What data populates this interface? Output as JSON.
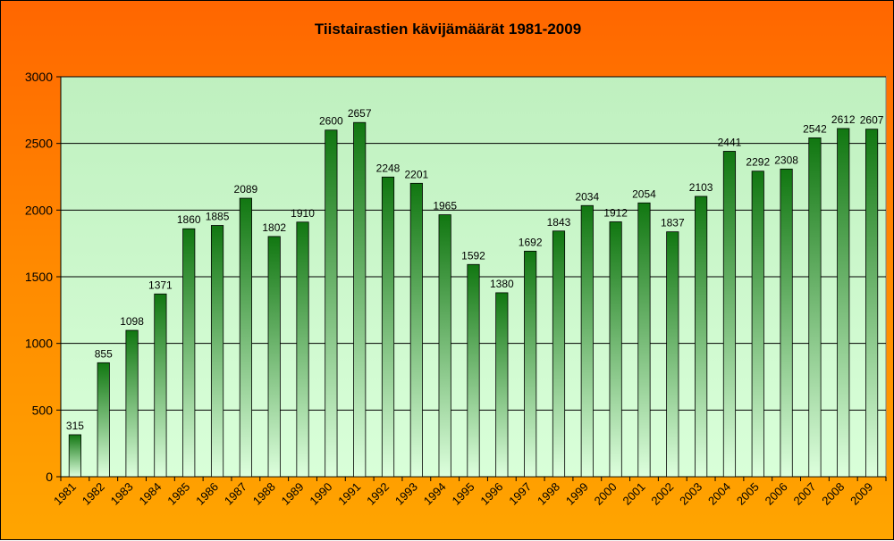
{
  "chart_data": {
    "type": "bar",
    "title": "Tiistairastien kävijämäärät 1981-2009",
    "xlabel": "",
    "ylabel": "",
    "ylim": [
      0,
      3000
    ],
    "yticks": [
      0,
      500,
      1000,
      1500,
      2000,
      2500,
      3000
    ],
    "grid": true,
    "legend": "none",
    "categories": [
      "1981",
      "1982",
      "1983",
      "1984",
      "1985",
      "1986",
      "1987",
      "1988",
      "1989",
      "1990",
      "1991",
      "1992",
      "1993",
      "1994",
      "1995",
      "1996",
      "1997",
      "1998",
      "1999",
      "2000",
      "2001",
      "2002",
      "2003",
      "2004",
      "2005",
      "2006",
      "2007",
      "2008",
      "2009"
    ],
    "values": [
      315,
      855,
      1098,
      1371,
      1860,
      1885,
      2089,
      1802,
      1910,
      2600,
      2657,
      2248,
      2201,
      1965,
      1592,
      1380,
      1692,
      1843,
      2034,
      1912,
      2054,
      1837,
      2103,
      2441,
      2292,
      2308,
      2542,
      2612,
      2607
    ],
    "colors": {
      "background_top": "#ff6600",
      "background_bottom": "#ffa500",
      "plot_top": "#bff0bf",
      "plot_bottom": "#d9ffd9",
      "bar_top": "#117711",
      "bar_bottom": "#ddffdd",
      "grid": "#000000"
    }
  }
}
